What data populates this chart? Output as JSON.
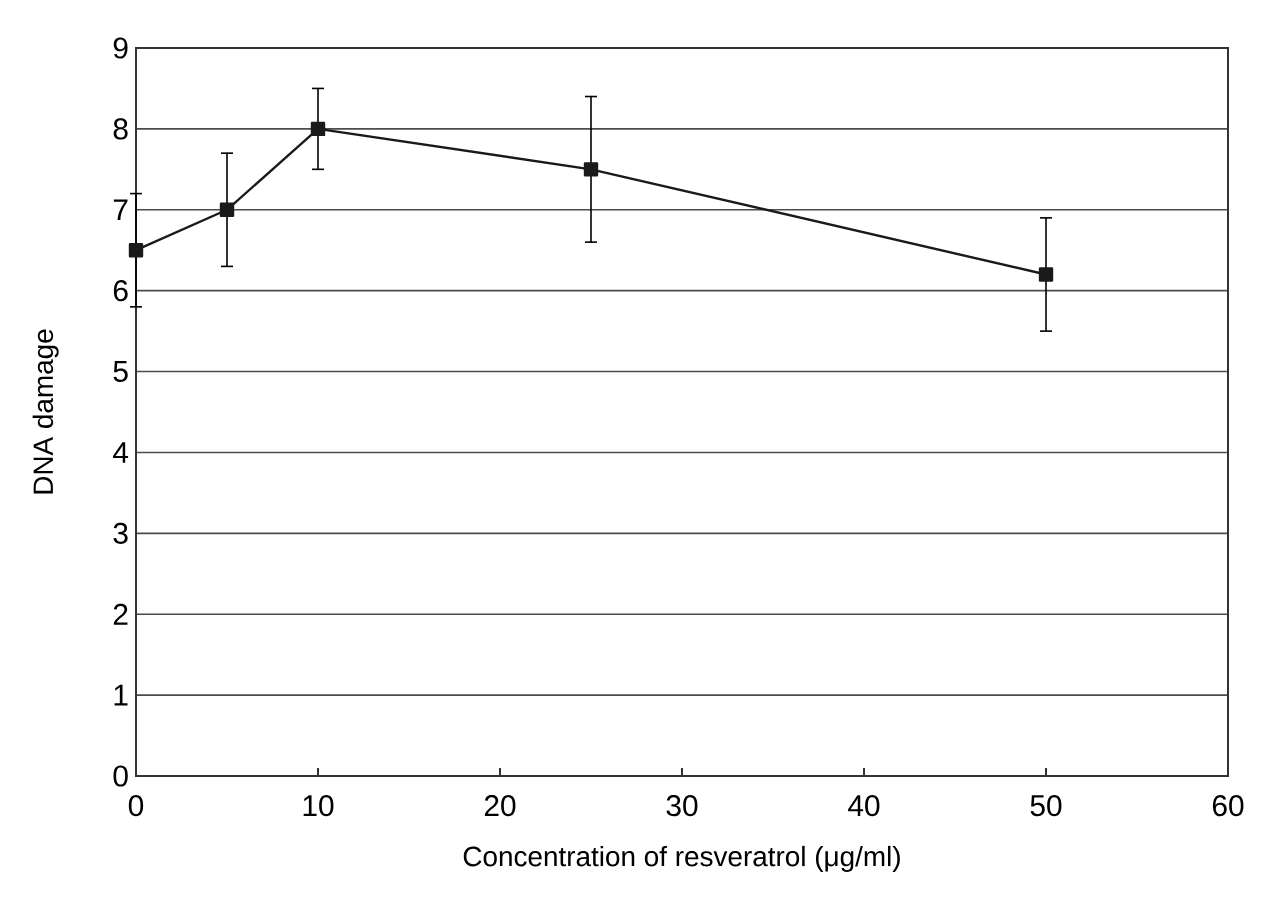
{
  "chart_data": {
    "type": "line",
    "xlabel": "Concentration of resveratrol (μg/ml)",
    "ylabel": "DNA damage",
    "x": [
      0,
      5,
      10,
      25,
      50
    ],
    "series": [
      {
        "color": "#1a1a1a",
        "values": [
          6.5,
          7.0,
          8.0,
          7.5,
          6.2
        ],
        "errors": [
          0.7,
          0.7,
          0.5,
          0.9,
          0.7
        ]
      }
    ],
    "xlim": [
      0,
      60
    ],
    "xticks": [
      0,
      10,
      20,
      30,
      40,
      50,
      60
    ],
    "ylim": [
      0,
      9
    ],
    "yticks": [
      0,
      1,
      2,
      3,
      4,
      5,
      6,
      7,
      8,
      9
    ],
    "grid": "y",
    "marker": "square",
    "line_style": "solid"
  }
}
